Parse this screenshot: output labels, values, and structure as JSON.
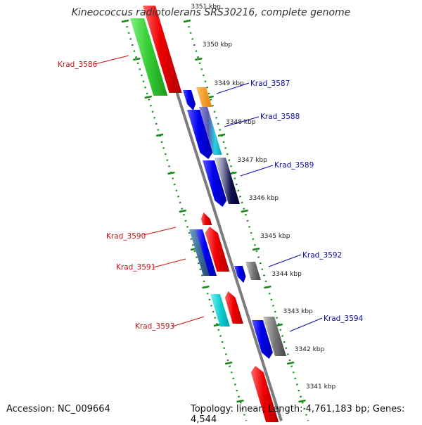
{
  "title": "Kineococcus radiotolerans SRS30216, complete genome",
  "footer": {
    "accession": "Accession: NC_009664",
    "meta": "Topology: linear; Length: 4,761,183 bp; Genes: 4,544"
  },
  "colors": {
    "axis": "#888888",
    "ticks": "#1a8a1a",
    "forward_label": "#0a0aa8",
    "reverse_label": "#cc1111"
  },
  "kbp_ticks": [
    "3351 kbp",
    "3350 kbp",
    "3349 kbp",
    "3348 kbp",
    "3347 kbp",
    "3346 kbp",
    "3345 kbp",
    "3344 kbp",
    "3343 kbp",
    "3342 kbp",
    "3341 kbp"
  ],
  "genes": [
    {
      "label": "Krad_3586",
      "strand": "reverse"
    },
    {
      "label": "Krad_3587",
      "strand": "forward"
    },
    {
      "label": "Krad_3588",
      "strand": "forward"
    },
    {
      "label": "Krad_3589",
      "strand": "forward"
    },
    {
      "label": "Krad_3590",
      "strand": "reverse"
    },
    {
      "label": "Krad_3591",
      "strand": "reverse"
    },
    {
      "label": "Krad_3592",
      "strand": "forward"
    },
    {
      "label": "Krad_3593",
      "strand": "reverse"
    },
    {
      "label": "Krad_3594",
      "strand": "forward"
    }
  ]
}
